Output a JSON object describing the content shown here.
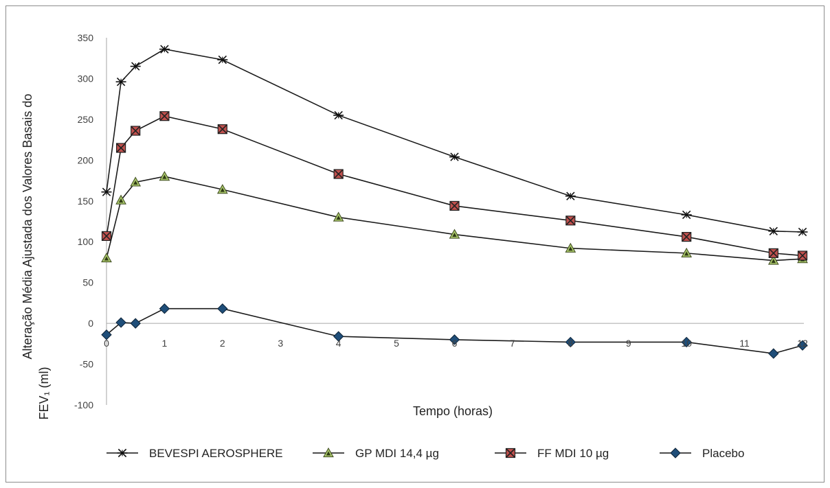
{
  "chart_data": {
    "type": "line",
    "title": "",
    "xlabel": "Tempo (horas)",
    "ylabel": "Alteração Média Ajustada dos Valores Basais do",
    "ylabel_line2": "FEV₁ (ml)",
    "xlim": [
      0,
      12
    ],
    "ylim": [
      -100,
      350
    ],
    "xticks": [
      0,
      1,
      2,
      3,
      4,
      5,
      6,
      7,
      8,
      9,
      10,
      11,
      12
    ],
    "yticks": [
      350,
      300,
      250,
      200,
      150,
      100,
      50,
      0,
      -50,
      -100
    ],
    "grid": false,
    "legend_position": "bottom",
    "x": [
      0,
      0.25,
      0.5,
      1,
      2,
      4,
      6,
      8,
      10,
      11.5,
      12
    ],
    "series": [
      {
        "name": "BEVESPI AEROSPHERE",
        "marker": "asterisk",
        "color": "#1a1a1a",
        "values": [
          161,
          296,
          315,
          336,
          323,
          255,
          204,
          156,
          133,
          113,
          112
        ]
      },
      {
        "name": "GP MDI 14,4 µg",
        "marker": "triangle",
        "color": "#1a1a1a",
        "marker_color": "#a8c56a",
        "values": [
          80,
          151,
          173,
          180,
          164,
          130,
          109,
          92,
          86,
          77,
          79
        ]
      },
      {
        "name": "FF MDI 10 µg",
        "marker": "square-x",
        "color": "#1a1a1a",
        "marker_color": "#c0504d",
        "values": [
          107,
          215,
          236,
          254,
          238,
          183,
          144,
          126,
          106,
          86,
          83
        ]
      },
      {
        "name": "Placebo",
        "marker": "diamond",
        "color": "#1a1a1a",
        "marker_color": "#1f4e79",
        "values": [
          -14,
          1,
          0,
          18,
          18,
          -16,
          -20,
          -23,
          -23,
          -37,
          -27
        ]
      }
    ]
  }
}
